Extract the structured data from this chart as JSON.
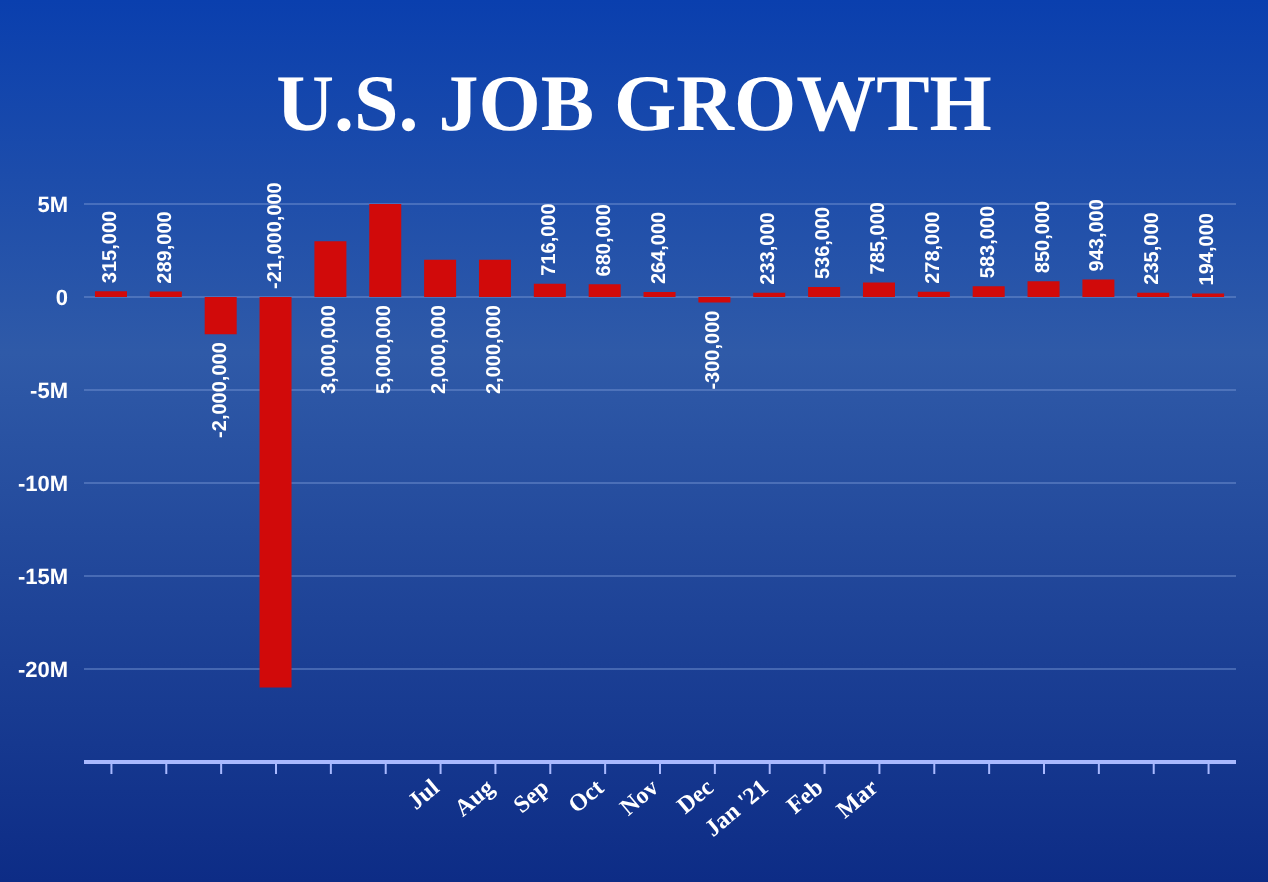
{
  "chart_data": {
    "type": "bar",
    "title": "U.S. JOB GROWTH",
    "categories": [
      null,
      null,
      null,
      null,
      null,
      null,
      "Jul",
      "Aug",
      "Sep",
      "Oct",
      "Nov",
      "Dec",
      "Jan '21",
      "Feb",
      "Mar",
      null,
      null,
      null,
      null,
      null,
      null
    ],
    "values": [
      315000,
      289000,
      -2000000,
      -21000000,
      3000000,
      5000000,
      2000000,
      2000000,
      716000,
      680000,
      264000,
      -300000,
      233000,
      536000,
      785000,
      278000,
      583000,
      850000,
      943000,
      235000,
      194000
    ],
    "value_labels": [
      "315,000",
      "289,000",
      "-2,000,000",
      "-21,000,000",
      "3,000,000",
      "5,000,000",
      "2,000,000",
      "2,000,000",
      "716,000",
      "680,000",
      "264,000",
      "-300,000",
      "233,000",
      "536,000",
      "785,000",
      "278,000",
      "583,000",
      "850,000",
      "943,000",
      "235,000",
      "194,000"
    ],
    "color": "#d10a0a",
    "ylim": [
      -25000000,
      5000000
    ],
    "yticks": [
      {
        "value": 5000000,
        "label": "5M"
      },
      0,
      {
        "value": -5000000,
        "label": "-5M"
      },
      {
        "value": -10000000,
        "label": "-10M"
      },
      {
        "value": -15000000,
        "label": "-15M"
      },
      {
        "value": -20000000,
        "label": "-20M"
      }
    ],
    "grid": "y"
  }
}
